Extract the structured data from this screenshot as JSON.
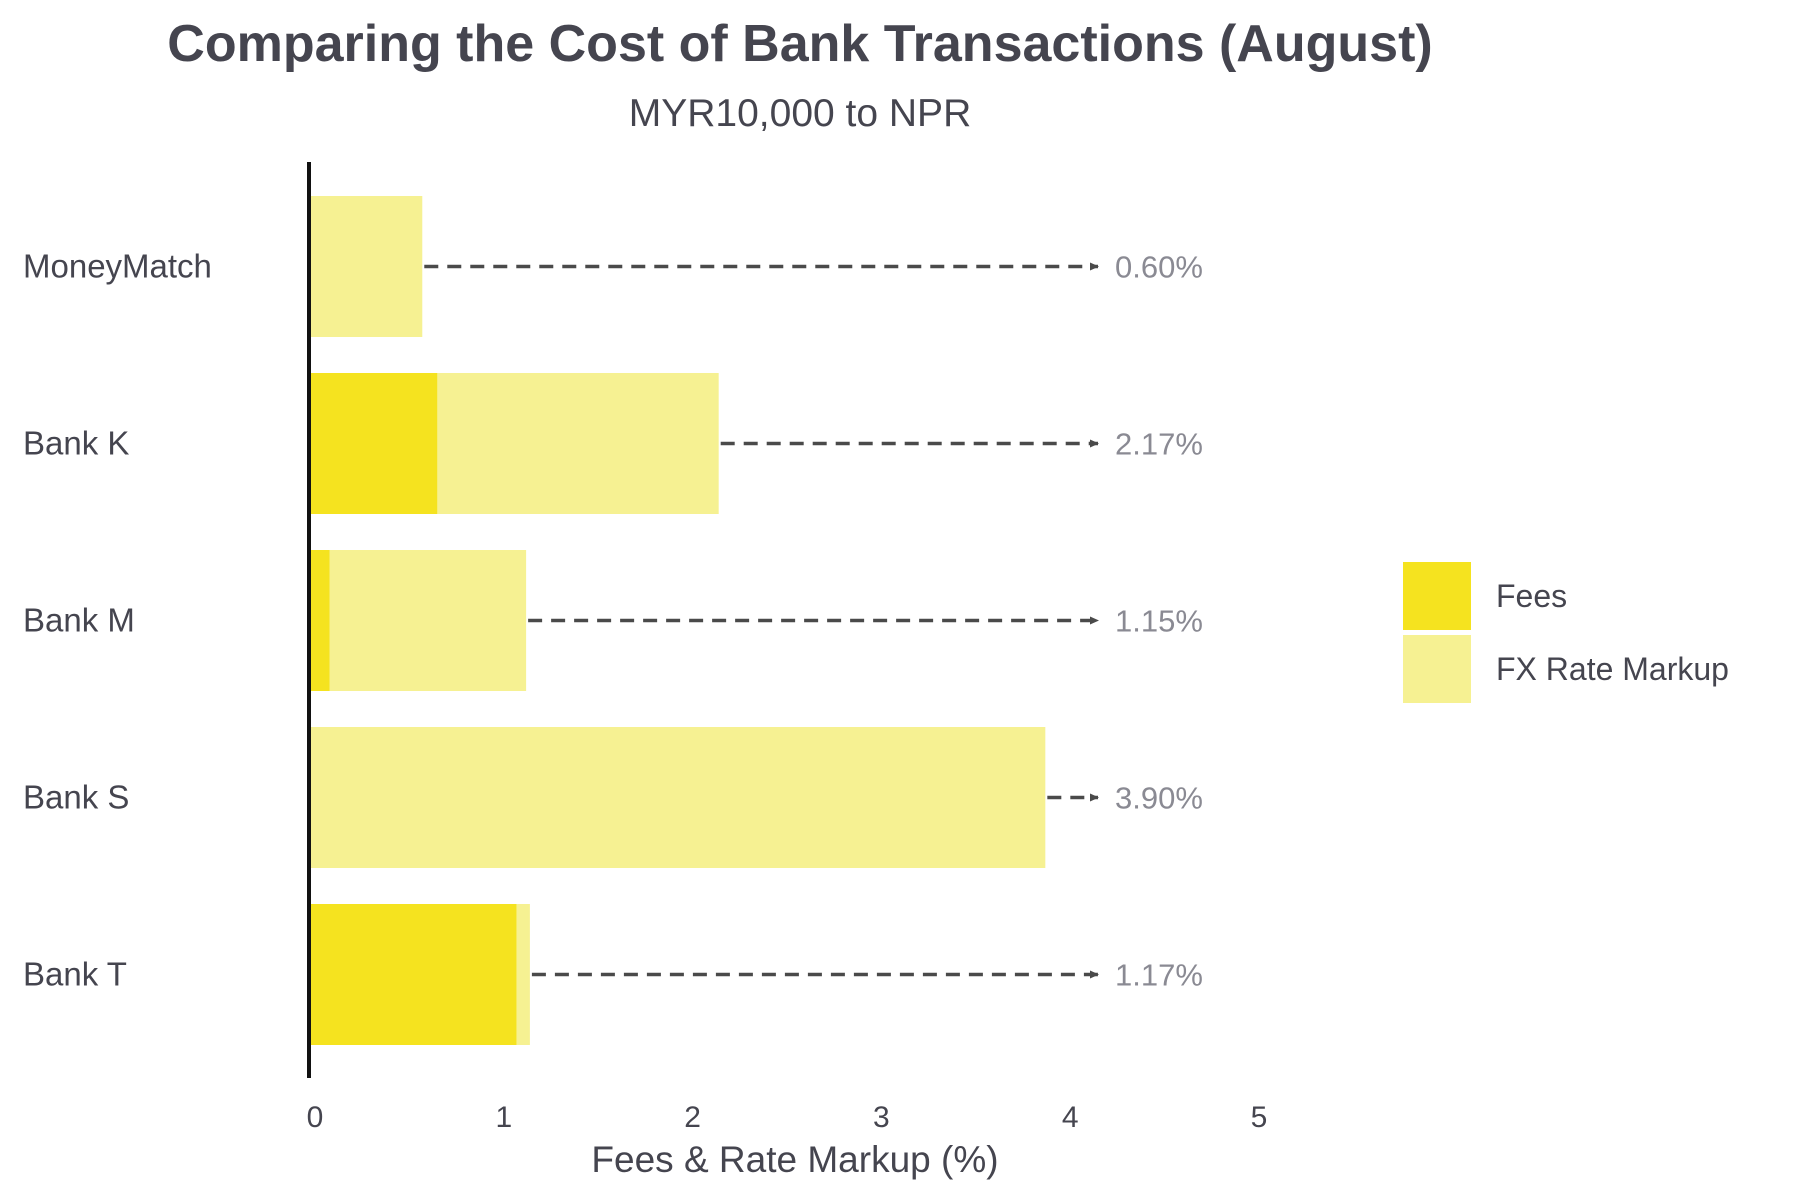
{
  "chart_data": {
    "type": "bar",
    "orientation": "horizontal",
    "stacked": true,
    "title": "Comparing the Cost of Bank Transactions (August)",
    "subtitle": "MYR10,000 to NPR",
    "xlabel": "Fees & Rate Markup (%)",
    "ylabel": "",
    "xlim": [
      0,
      5
    ],
    "xticks": [
      "0",
      "1",
      "2",
      "3",
      "4",
      "5"
    ],
    "grid": false,
    "legend_position": "right",
    "categories": [
      "MoneyMatch",
      "Bank K",
      "Bank M",
      "Bank S",
      "Bank T"
    ],
    "series": [
      {
        "name": "Fees",
        "color": "#f5e31f",
        "values": [
          0,
          0.68,
          0.11,
          0,
          1.1
        ]
      },
      {
        "name": "FX Rate Markup",
        "color": "#f6f192",
        "values": [
          0.6,
          1.49,
          1.04,
          3.9,
          0.07
        ]
      }
    ],
    "totals": [
      "0.60%",
      "2.17%",
      "1.15%",
      "3.90%",
      "1.17%"
    ],
    "total_values": [
      0.6,
      2.17,
      1.15,
      3.9,
      1.17
    ],
    "annotation_style": "dashed arrow from bar end to total label"
  }
}
